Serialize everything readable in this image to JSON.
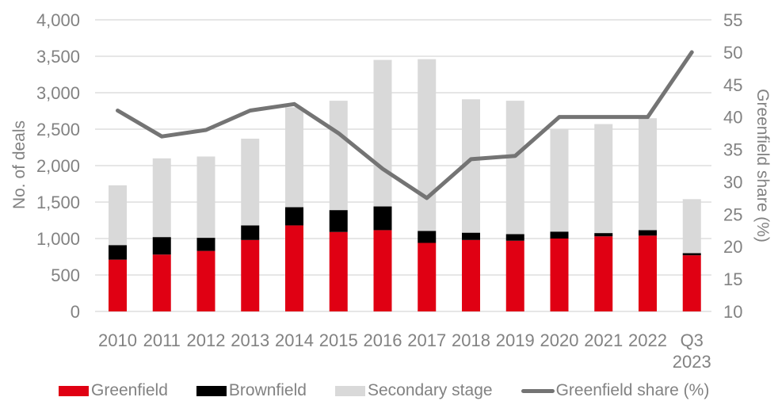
{
  "colors": {
    "greenfield": "#e00013",
    "brownfield": "#000000",
    "secondary": "#d9d9d9",
    "line": "#747474",
    "grid": "#d6d6d6",
    "axis_text": "#828282"
  },
  "chart_data": {
    "type": "bar",
    "subtype": "stacked-bars-with-line-overlay",
    "title": "",
    "categories": [
      "2010",
      "2011",
      "2012",
      "2013",
      "2014",
      "2015",
      "2016",
      "2017",
      "2018",
      "2019",
      "2020",
      "2021",
      "2022",
      "Q3 2023"
    ],
    "series": [
      {
        "name": "Greenfield",
        "type": "bar",
        "color_key": "greenfield",
        "values": [
          710,
          780,
          830,
          980,
          1180,
          1090,
          1115,
          940,
          980,
          970,
          1000,
          1030,
          1040,
          770
        ]
      },
      {
        "name": "Brownfield",
        "type": "bar",
        "color_key": "brownfield",
        "values": [
          200,
          240,
          180,
          200,
          250,
          300,
          325,
          165,
          100,
          90,
          95,
          45,
          75,
          30
        ]
      },
      {
        "name": "Secondary stage",
        "type": "bar",
        "color_key": "secondary",
        "values": [
          820,
          1080,
          1115,
          1190,
          1370,
          1500,
          2010,
          2355,
          1830,
          1830,
          1405,
          1495,
          1535,
          740
        ]
      },
      {
        "name": "Greenfield share (%)",
        "type": "line",
        "axis": "right",
        "color_key": "line",
        "values": [
          41,
          37,
          38,
          41,
          42,
          37.5,
          32,
          27.5,
          33.5,
          34,
          40,
          40,
          40,
          50
        ]
      }
    ],
    "ylabel_left": "No. of deals",
    "ylabel_right": "Greenfield share (%)",
    "y_left": {
      "min": 0,
      "max": 4000,
      "step": 500
    },
    "y_right": {
      "min": 10,
      "max": 55,
      "step": 5
    },
    "y_left_ticks": [
      "0",
      "500",
      "1,000",
      "1,500",
      "2,000",
      "2,500",
      "3,000",
      "3,500",
      "4,000"
    ],
    "y_right_ticks": [
      "10",
      "15",
      "20",
      "25",
      "30",
      "35",
      "40",
      "45",
      "50",
      "55"
    ],
    "grid": true,
    "legend_position": "bottom"
  }
}
